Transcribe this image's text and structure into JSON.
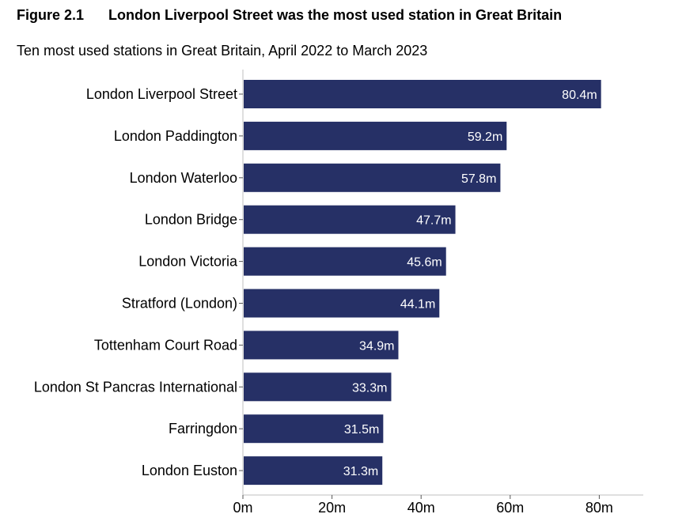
{
  "figure": {
    "number": "Figure 2.1",
    "title": "London Liverpool Street was the most used station in Great Britain",
    "subtitle": "Ten most used stations in Great Britain, April 2022 to March 2023"
  },
  "chart_data": {
    "type": "bar",
    "orientation": "horizontal",
    "categories": [
      "London Liverpool Street",
      "London Paddington",
      "London Waterloo",
      "London Bridge",
      "London Victoria",
      "Stratford (London)",
      "Tottenham Court Road",
      "London St Pancras International",
      "Farringdon",
      "London Euston"
    ],
    "values": [
      80.4,
      59.2,
      57.8,
      47.7,
      45.6,
      44.1,
      34.9,
      33.3,
      31.5,
      31.3
    ],
    "data_labels": [
      "80.4m",
      "59.2m",
      "57.8m",
      "47.7m",
      "45.6m",
      "44.1m",
      "34.9m",
      "33.3m",
      "31.5m",
      "31.3m"
    ],
    "x_ticks": [
      0,
      20,
      40,
      60,
      80
    ],
    "x_tick_labels": [
      "0m",
      "20m",
      "40m",
      "60m",
      "80m"
    ],
    "xlim": [
      0,
      90
    ],
    "xlabel": "",
    "ylabel": "",
    "grid": false,
    "bar_color": "#263066",
    "label_color": "#ffffff"
  }
}
